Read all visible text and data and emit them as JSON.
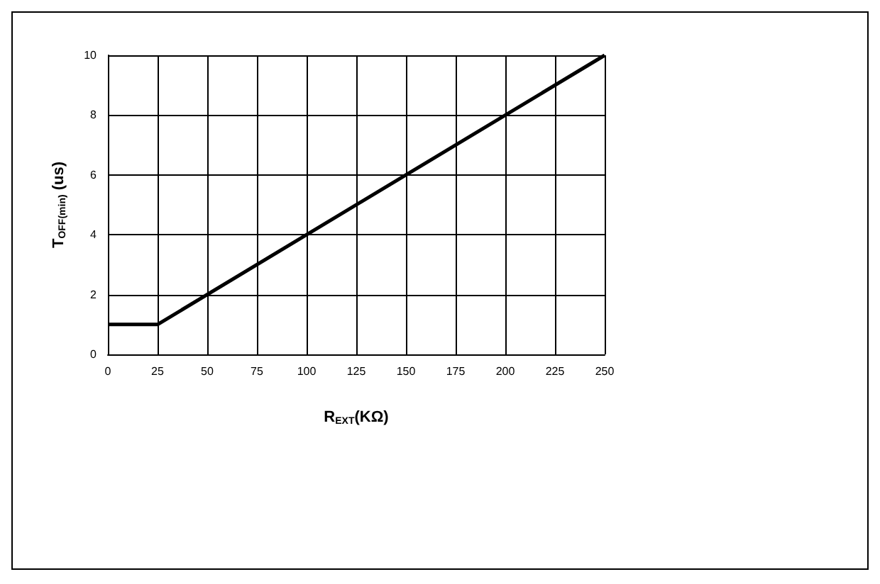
{
  "chart_data": {
    "type": "line",
    "x": [
      0,
      25,
      250
    ],
    "series": [
      {
        "color": "#000000",
        "values": [
          1,
          1,
          10
        ]
      }
    ],
    "xlabel": "R$_{EXT}$(KΩ)",
    "ylabel": "T$_{OFF(min)}$ (us)",
    "xlim": [
      0,
      250
    ],
    "xticks": [
      0,
      25,
      50,
      75,
      100,
      125,
      150,
      175,
      200,
      225,
      250
    ],
    "ylim": [
      0,
      10
    ],
    "yticks": [
      0,
      2,
      4,
      6,
      8,
      10
    ],
    "grid": true,
    "marker": "none",
    "line_style": "solid"
  }
}
